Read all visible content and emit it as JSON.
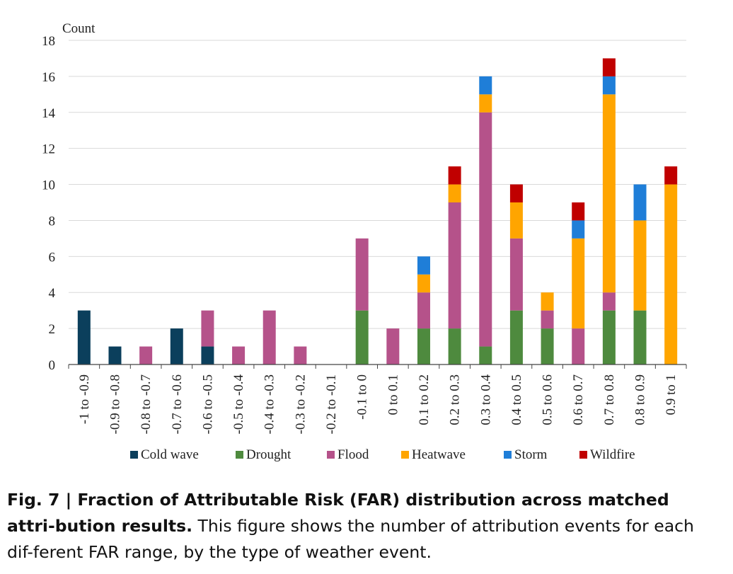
{
  "chart_data": {
    "type": "bar",
    "stacked": true,
    "title": "",
    "ylabel": "Count",
    "xlabel": "",
    "ylim": [
      0,
      18
    ],
    "yticks": [
      "0",
      "2",
      "4",
      "6",
      "8",
      "10",
      "12",
      "14",
      "16",
      "18"
    ],
    "grid": "horizontal",
    "legend_position": "bottom",
    "categories": [
      "-1 to -0.9",
      "-0.9 to -0.8",
      "-0.8 to -0.7",
      "-0.7 to -0.6",
      "-0.6 to -0.5",
      "-0.5 to -0.4",
      "-0.4 to -0.3",
      "-0.3 to -0.2",
      "-0.2 to -0.1",
      "-0.1 to 0",
      "0 to 0.1",
      "0.1 to 0.2",
      "0.2 to 0.3",
      "0.3 to 0.4",
      "0.4 to 0.5",
      "0.5 to 0.6",
      "0.6 to 0.7",
      "0.7 to 0.8",
      "0.8 to 0.9",
      "0.9 to 1"
    ],
    "series": [
      {
        "name": "Cold wave",
        "color": "#0b3f5c",
        "values": [
          3,
          1,
          0,
          2,
          1,
          0,
          0,
          0,
          0,
          0,
          0,
          0,
          0,
          0,
          0,
          0,
          0,
          0,
          0,
          0
        ]
      },
      {
        "name": "Drought",
        "color": "#4e8a3e",
        "values": [
          0,
          0,
          0,
          0,
          0,
          0,
          0,
          0,
          0,
          3,
          0,
          2,
          2,
          1,
          3,
          2,
          0,
          3,
          3,
          0
        ]
      },
      {
        "name": "Flood",
        "color": "#b5528a",
        "values": [
          0,
          0,
          1,
          0,
          2,
          1,
          3,
          1,
          0,
          4,
          2,
          2,
          7,
          13,
          4,
          1,
          2,
          1,
          0,
          0
        ]
      },
      {
        "name": "Heatwave",
        "color": "#ffa500",
        "values": [
          0,
          0,
          0,
          0,
          0,
          0,
          0,
          0,
          0,
          0,
          0,
          1,
          1,
          1,
          2,
          1,
          5,
          11,
          5,
          10
        ]
      },
      {
        "name": "Storm",
        "color": "#1f7ed8",
        "values": [
          0,
          0,
          0,
          0,
          0,
          0,
          0,
          0,
          0,
          0,
          0,
          1,
          0,
          1,
          0,
          0,
          1,
          1,
          2,
          0
        ]
      },
      {
        "name": "Wildfire",
        "color": "#c00000",
        "values": [
          0,
          0,
          0,
          0,
          0,
          0,
          0,
          0,
          0,
          0,
          0,
          0,
          1,
          0,
          1,
          0,
          1,
          1,
          0,
          1
        ]
      }
    ]
  },
  "caption": {
    "label": "Fig. 7 | Fraction of Attributable Risk (FAR) distribution across matched attri-bution results.",
    "text": " This figure shows the number of attribution events for each dif-ferent FAR range, by the type of weather event."
  }
}
